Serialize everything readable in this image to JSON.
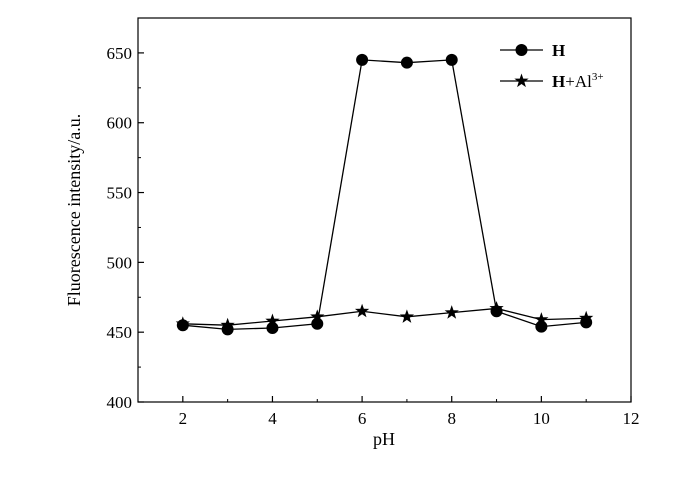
{
  "chart_data": {
    "type": "line",
    "title": "",
    "xlabel": "pH",
    "ylabel": "Fluorescence intensity/a.u.",
    "xlim": [
      1,
      12
    ],
    "ylim": [
      400,
      675
    ],
    "x_ticks": [
      2,
      4,
      6,
      8,
      10,
      12
    ],
    "y_ticks": [
      400,
      450,
      500,
      550,
      600,
      650
    ],
    "grid": false,
    "legend_position": "top-right",
    "x": [
      2,
      3,
      4,
      5,
      6,
      7,
      8,
      9,
      10,
      11
    ],
    "series": [
      {
        "name": "H",
        "marker": "circle",
        "values": [
          455,
          452,
          453,
          456,
          645,
          643,
          645,
          465,
          454,
          457
        ]
      },
      {
        "name": "H+Al3+",
        "name_parts": {
          "base": "H",
          "plus": "+Al",
          "sup": "3+"
        },
        "marker": "star",
        "values": [
          456,
          455,
          458,
          461,
          465,
          461,
          464,
          467,
          459,
          460
        ]
      }
    ]
  },
  "colors": {
    "line": "#000000",
    "marker": "#000000",
    "background": "#ffffff"
  }
}
